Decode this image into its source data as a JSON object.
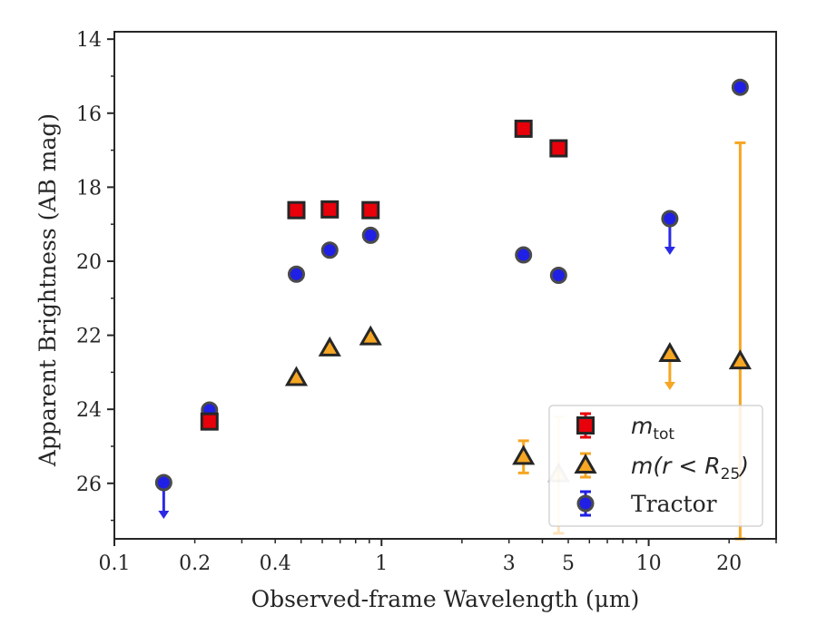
{
  "chart_data": {
    "type": "scatter",
    "xlabel": "Observed-frame Wavelength (μm)",
    "ylabel": "Apparent Brightness (AB mag)",
    "xscale": "log",
    "xlim": [
      0.1,
      30
    ],
    "ylim": [
      27.5,
      13.8
    ],
    "y_inverted": true,
    "grid": false,
    "legend_placement": "lower-right",
    "x_ticks": [
      0.1,
      0.2,
      0.4,
      1,
      3,
      5,
      10,
      20
    ],
    "x_tick_labels": [
      "0.1",
      "0.2",
      "0.4",
      "1",
      "3",
      "5",
      "10",
      "20"
    ],
    "y_ticks": [
      14,
      16,
      18,
      20,
      22,
      24,
      26
    ],
    "y_tick_labels": [
      "14",
      "16",
      "18",
      "20",
      "22",
      "24",
      "26"
    ],
    "colors": {
      "mtot": "#e8000b",
      "r25": "#f5a623",
      "tractor": "#1f1fe6",
      "edge": "#262626",
      "tractor_arrow": "#2a2ae6"
    },
    "series": [
      {
        "key": "mtot",
        "name": "m_tot",
        "legend_main": "m",
        "legend_sub": "tot",
        "marker": "square",
        "points": [
          {
            "x": 0.227,
            "y": 24.33
          },
          {
            "x": 0.48,
            "y": 18.62
          },
          {
            "x": 0.64,
            "y": 18.6
          },
          {
            "x": 0.91,
            "y": 18.62
          },
          {
            "x": 3.4,
            "y": 16.42
          },
          {
            "x": 4.6,
            "y": 16.95
          }
        ]
      },
      {
        "key": "r25",
        "name": "m(r < R_25)",
        "legend_main": "m(r < R",
        "legend_sub": "25",
        "legend_end": ")",
        "marker": "triangle",
        "points": [
          {
            "x": 0.48,
            "y": 23.15
          },
          {
            "x": 0.64,
            "y": 22.35
          },
          {
            "x": 0.91,
            "y": 22.05
          },
          {
            "x": 3.4,
            "y": 25.28,
            "err_lo": 24.85,
            "err_hi": 25.72
          },
          {
            "x": 4.6,
            "y": 25.75,
            "err_lo": 24.2,
            "err_hi": 27.35,
            "faded": true
          },
          {
            "x": 12.0,
            "y": 22.5,
            "upper_limit": true
          },
          {
            "x": 22.0,
            "y": 22.7,
            "err_lo": 16.8,
            "err_hi": 27.5
          }
        ]
      },
      {
        "key": "tractor",
        "name": "Tractor",
        "marker": "circle",
        "points": [
          {
            "x": 0.153,
            "y": 25.98,
            "upper_limit": true
          },
          {
            "x": 0.227,
            "y": 24.02
          },
          {
            "x": 0.48,
            "y": 20.35
          },
          {
            "x": 0.64,
            "y": 19.7
          },
          {
            "x": 0.91,
            "y": 19.3
          },
          {
            "x": 3.4,
            "y": 19.83
          },
          {
            "x": 4.6,
            "y": 20.38
          },
          {
            "x": 12.0,
            "y": 18.85,
            "upper_limit": true
          },
          {
            "x": 22.0,
            "y": 15.3
          }
        ]
      }
    ]
  }
}
